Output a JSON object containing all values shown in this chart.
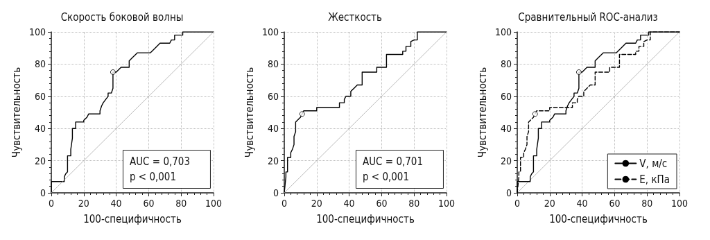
{
  "chart_data": [
    {
      "type": "line",
      "title": "Скорость боковой волны",
      "xlabel": "100-специфичность",
      "ylabel": "Чувствительность",
      "xlim": [
        0,
        100
      ],
      "ylim": [
        0,
        100
      ],
      "xticks": [
        0,
        20,
        40,
        60,
        80,
        100
      ],
      "yticks": [
        0,
        20,
        40,
        60,
        80,
        100
      ],
      "grid": true,
      "annotations": [
        "AUC = 0,703",
        "p < 0,001"
      ],
      "series": [
        {
          "color": "#000000",
          "line_style": "solid",
          "marker": "none",
          "x": [
            0,
            0,
            8,
            8,
            9,
            10,
            10,
            12,
            12,
            13,
            13,
            15,
            15,
            20,
            20,
            22,
            23,
            30,
            30,
            31,
            32,
            35,
            35,
            37,
            38,
            38,
            40,
            43,
            48,
            48,
            50,
            53,
            61,
            65,
            67,
            73,
            74,
            76,
            76,
            81,
            81,
            100
          ],
          "values": [
            0,
            7,
            7,
            10,
            12,
            13,
            23,
            23,
            27,
            34,
            40,
            40,
            44,
            44,
            45,
            47,
            49,
            49,
            51,
            54,
            56,
            60,
            62,
            62,
            65,
            75,
            75,
            78,
            78,
            82,
            84,
            87,
            87,
            91,
            93,
            93,
            95,
            95,
            98,
            98,
            100,
            100
          ]
        },
        {
          "color": "#aaaaaa",
          "line_style": "solid",
          "marker": "none",
          "x": [
            0,
            100
          ],
          "values": [
            0,
            100
          ]
        },
        {
          "type": "scatter",
          "color": "#000000",
          "marker": "circle",
          "x": [
            38
          ],
          "values": [
            75
          ]
        }
      ]
    },
    {
      "type": "line",
      "title": "Жесткость",
      "xlabel": "100-специфичность",
      "ylabel": "Чувствительность",
      "xlim": [
        0,
        100
      ],
      "ylim": [
        0,
        100
      ],
      "xticks": [
        0,
        20,
        40,
        60,
        80,
        100
      ],
      "yticks": [
        0,
        20,
        40,
        60,
        80,
        100
      ],
      "grid": true,
      "annotations": [
        "AUC = 0,701",
        "p < 0,001"
      ],
      "series": [
        {
          "color": "#000000",
          "line_style": "solid",
          "marker": "none",
          "x": [
            0,
            1,
            1,
            2,
            2,
            4,
            4,
            5,
            6,
            6,
            7,
            7,
            9,
            10,
            11,
            12,
            20,
            20,
            34,
            34,
            37,
            37,
            38,
            41,
            41,
            43,
            45,
            48,
            48,
            57,
            57,
            63,
            63,
            73,
            73,
            75,
            75,
            78,
            78,
            80,
            82,
            82,
            100
          ],
          "values": [
            0,
            10,
            13,
            13,
            22,
            22,
            25,
            27,
            30,
            35,
            38,
            44,
            46,
            47,
            49,
            51,
            51,
            53,
            53,
            56,
            56,
            58,
            60,
            60,
            63,
            65,
            67,
            67,
            75,
            75,
            78,
            78,
            86,
            86,
            88,
            88,
            91,
            91,
            94,
            95,
            95,
            100,
            100
          ]
        },
        {
          "color": "#aaaaaa",
          "line_style": "solid",
          "marker": "none",
          "x": [
            0,
            100
          ],
          "values": [
            0,
            100
          ]
        },
        {
          "type": "scatter",
          "color": "#000000",
          "marker": "circle",
          "x": [
            11
          ],
          "values": [
            49
          ]
        }
      ]
    },
    {
      "type": "line",
      "title": "Сравнительный ROC-анализ",
      "xlabel": "100-специфичность",
      "ylabel": "Чувствительность",
      "xlim": [
        0,
        100
      ],
      "ylim": [
        0,
        100
      ],
      "xticks": [
        0,
        20,
        40,
        60,
        80,
        100
      ],
      "yticks": [
        0,
        20,
        40,
        60,
        80,
        100
      ],
      "grid": true,
      "legend": "bottom right",
      "series": [
        {
          "name": "V, м/с",
          "color": "#000000",
          "line_style": "solid",
          "marker": "none",
          "x": [
            0,
            0,
            8,
            8,
            9,
            10,
            10,
            12,
            12,
            13,
            13,
            15,
            15,
            20,
            20,
            22,
            23,
            30,
            30,
            31,
            32,
            35,
            35,
            37,
            38,
            38,
            40,
            43,
            48,
            48,
            50,
            53,
            61,
            65,
            67,
            73,
            74,
            76,
            76,
            81,
            81,
            100
          ],
          "values": [
            0,
            7,
            7,
            10,
            12,
            13,
            23,
            23,
            27,
            34,
            40,
            40,
            44,
            44,
            45,
            47,
            49,
            49,
            51,
            54,
            56,
            60,
            62,
            62,
            65,
            75,
            75,
            78,
            78,
            82,
            84,
            87,
            87,
            91,
            93,
            93,
            95,
            95,
            98,
            98,
            100,
            100
          ]
        },
        {
          "name": "E, кПа",
          "color": "#000000",
          "line_style": "dashed",
          "marker": "none",
          "x": [
            0,
            1,
            1,
            2,
            2,
            4,
            4,
            5,
            6,
            6,
            7,
            7,
            9,
            10,
            11,
            12,
            20,
            20,
            34,
            34,
            37,
            37,
            38,
            41,
            41,
            43,
            45,
            48,
            48,
            57,
            57,
            63,
            63,
            73,
            73,
            75,
            75,
            78,
            78,
            80,
            82,
            82,
            100
          ],
          "values": [
            0,
            10,
            13,
            13,
            22,
            22,
            25,
            27,
            30,
            35,
            38,
            44,
            46,
            47,
            49,
            51,
            51,
            53,
            53,
            56,
            56,
            58,
            60,
            60,
            63,
            65,
            67,
            67,
            75,
            75,
            78,
            78,
            86,
            86,
            88,
            88,
            91,
            91,
            94,
            95,
            95,
            100,
            100
          ]
        },
        {
          "color": "#aaaaaa",
          "line_style": "solid",
          "marker": "none",
          "x": [
            0,
            100
          ],
          "values": [
            0,
            100
          ]
        },
        {
          "type": "scatter",
          "color": "#000000",
          "marker": "circle",
          "x": [
            38,
            11
          ],
          "values": [
            75,
            49
          ]
        }
      ]
    }
  ]
}
